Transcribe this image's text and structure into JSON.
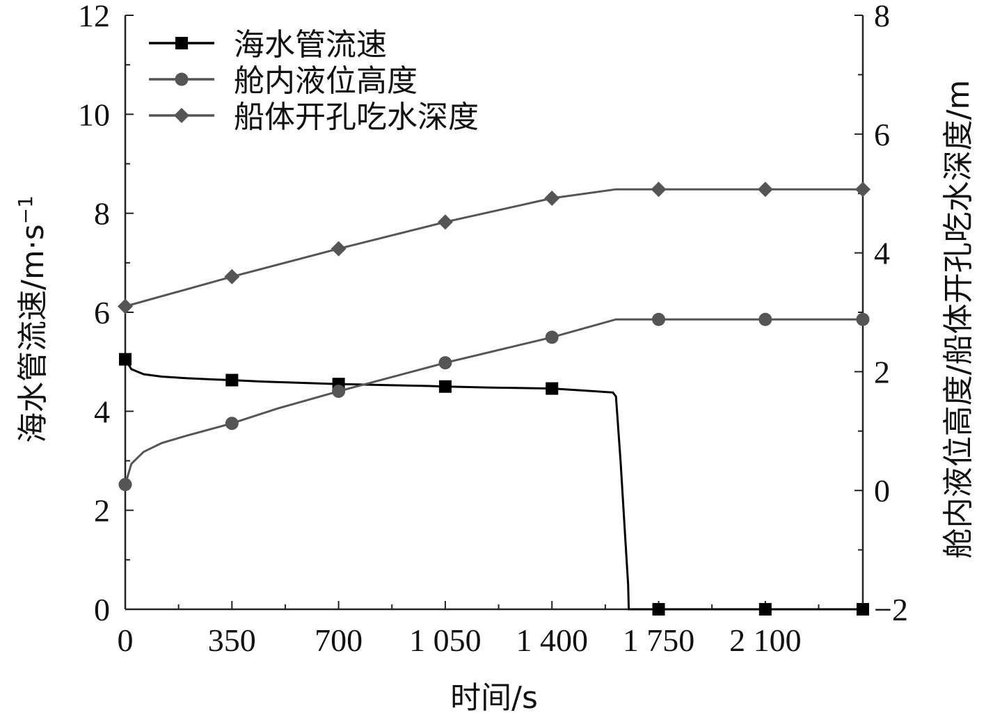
{
  "chart_data": {
    "type": "line",
    "xlabel": "时间/s",
    "ylabel_left": "海水管流速/m·s",
    "ylabel_left_sup": "−1",
    "ylabel_right": "舱内液位高度/船体开孔吃水深度/m",
    "xlim": [
      0,
      2420
    ],
    "xticks": [
      0,
      350,
      700,
      1050,
      1400,
      1750,
      2100
    ],
    "xtick_labels": [
      "0",
      "350",
      "700",
      "1 050",
      "1 400",
      "1 750",
      "2 100"
    ],
    "ylim_left": [
      0,
      12
    ],
    "yticks_left": [
      0,
      2,
      4,
      6,
      8,
      10,
      12
    ],
    "ylim_right": [
      -2,
      8
    ],
    "yticks_right": [
      -2,
      0,
      2,
      4,
      6,
      8
    ],
    "yticks_right_labels": [
      "−2",
      "0",
      "2",
      "4",
      "6",
      "8"
    ],
    "legend_position": "top-left",
    "series": [
      {
        "name": "海水管流速",
        "axis": "left",
        "color": "#000000",
        "marker": "square",
        "x": [
          0,
          20,
          60,
          120,
          200,
          300,
          350,
          450,
          600,
          700,
          850,
          1000,
          1050,
          1200,
          1300,
          1400,
          1500,
          1600,
          1610,
          1625,
          1640,
          1650,
          1652,
          1750,
          2100,
          2420
        ],
        "y": [
          5.05,
          4.85,
          4.75,
          4.7,
          4.67,
          4.64,
          4.63,
          4.6,
          4.57,
          4.55,
          4.53,
          4.51,
          4.5,
          4.48,
          4.47,
          4.46,
          4.42,
          4.38,
          4.3,
          3.0,
          1.5,
          0.5,
          0.0,
          0.0,
          0.0,
          0.0
        ],
        "marker_x": [
          0,
          350,
          700,
          1050,
          1400,
          1750,
          2100,
          2420
        ],
        "marker_y": [
          5.05,
          4.63,
          4.55,
          4.5,
          4.46,
          0.0,
          0.0,
          0.0
        ]
      },
      {
        "name": "舱内液位高度",
        "axis": "right",
        "color": "#555555",
        "marker": "circle",
        "x": [
          0,
          20,
          60,
          120,
          200,
          350,
          500,
          700,
          1050,
          1400,
          1610,
          1750,
          2100,
          2420
        ],
        "y": [
          0.1,
          0.45,
          0.65,
          0.8,
          0.92,
          1.13,
          1.38,
          1.67,
          2.15,
          2.58,
          2.88,
          2.88,
          2.88,
          2.88
        ],
        "marker_x": [
          0,
          350,
          700,
          1050,
          1400,
          1750,
          2100,
          2420
        ],
        "marker_y": [
          0.1,
          1.13,
          1.67,
          2.15,
          2.58,
          2.88,
          2.88,
          2.88
        ]
      },
      {
        "name": "船体开孔吃水深度",
        "axis": "right",
        "color": "#555555",
        "marker": "diamond",
        "x": [
          0,
          350,
          700,
          1050,
          1400,
          1610,
          1750,
          2100,
          2420
        ],
        "y": [
          3.1,
          3.6,
          4.07,
          4.52,
          4.92,
          5.07,
          5.07,
          5.07,
          5.07
        ],
        "marker_x": [
          0,
          350,
          700,
          1050,
          1400,
          1750,
          2100,
          2420
        ],
        "marker_y": [
          3.1,
          3.6,
          4.07,
          4.52,
          4.92,
          5.07,
          5.07,
          5.07
        ]
      }
    ]
  }
}
